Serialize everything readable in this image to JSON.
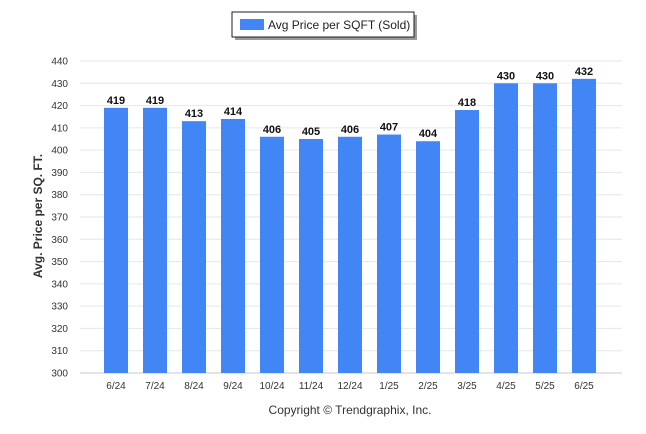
{
  "chart_data": {
    "type": "bar",
    "categories": [
      "6/24",
      "7/24",
      "8/24",
      "9/24",
      "10/24",
      "11/24",
      "12/24",
      "1/25",
      "2/25",
      "3/25",
      "4/25",
      "5/25",
      "6/25"
    ],
    "series": [
      {
        "name": "Avg Price per SQFT (Sold)",
        "values": [
          419,
          419,
          413,
          414,
          406,
          405,
          406,
          407,
          404,
          418,
          430,
          430,
          432
        ],
        "color": "#4285f4"
      }
    ],
    "ylabel": "Avg. Price per SQ. FT.",
    "xlabel": "",
    "ylim": [
      300,
      440
    ],
    "yticks": [
      300,
      310,
      320,
      330,
      340,
      350,
      360,
      370,
      380,
      390,
      400,
      410,
      420,
      430,
      440
    ],
    "grid": true,
    "legend_position": "top-center",
    "data_labels": true
  },
  "footer": {
    "copyright": "Copyright © Trendgraphix, Inc."
  }
}
